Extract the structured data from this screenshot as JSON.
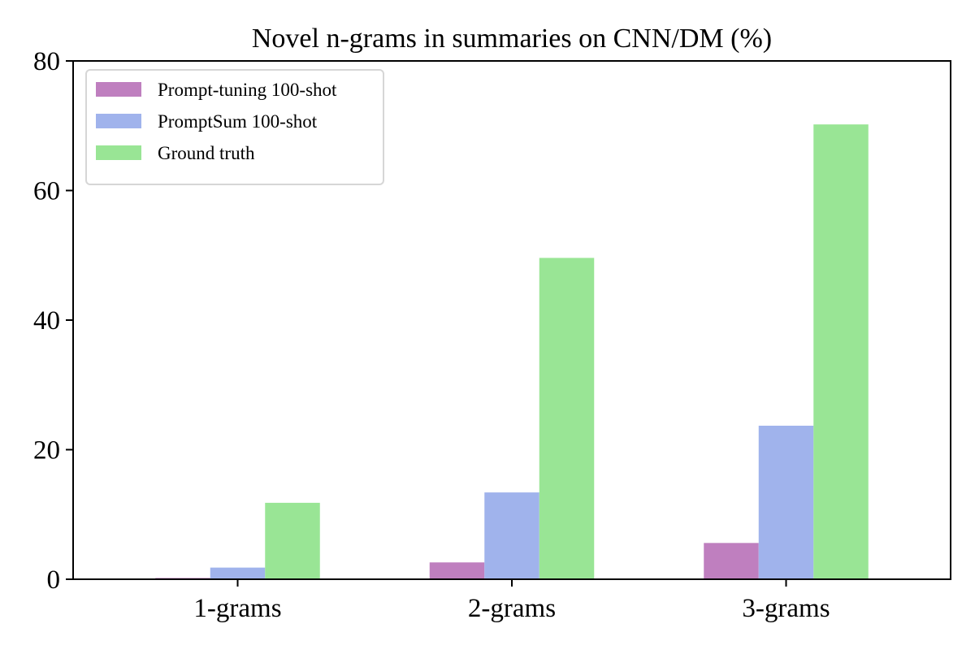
{
  "chart_data": {
    "type": "bar",
    "title": "Novel n-grams in summaries on CNN/DM (%)",
    "xlabel": "",
    "ylabel": "",
    "categories": [
      "1-grams",
      "2-grams",
      "3-grams"
    ],
    "ylim": [
      0,
      80
    ],
    "yticks": [
      0,
      20,
      40,
      60,
      80
    ],
    "grid": false,
    "legend_position": "top-left",
    "series": [
      {
        "name": "Prompt-tuning 100-shot",
        "color": "#bf7fbf",
        "values": [
          0.2,
          2.6,
          5.6
        ]
      },
      {
        "name": "PromptSum 100-shot",
        "color": "#a0b3ec",
        "values": [
          1.8,
          13.4,
          23.7
        ]
      },
      {
        "name": "Ground truth",
        "color": "#99e595",
        "values": [
          11.8,
          49.6,
          70.2
        ]
      }
    ]
  }
}
